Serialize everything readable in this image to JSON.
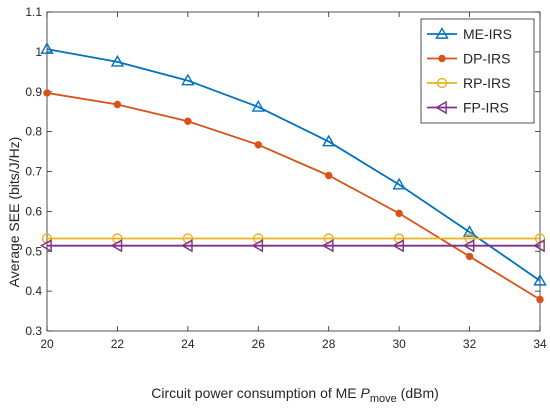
{
  "chart_data": {
    "type": "line",
    "title": "",
    "xlabel": {
      "prefix": "Circuit power consumption of ME ",
      "symbol": "P",
      "subscript": "move",
      "suffix": " (dBm)"
    },
    "ylabel": "Average SEE (bits/J/Hz)",
    "xlim": [
      20,
      34
    ],
    "ylim": [
      0.3,
      1.1
    ],
    "x_ticks": [
      "20",
      "22",
      "24",
      "26",
      "28",
      "30",
      "32",
      "34"
    ],
    "y_ticks": [
      "0.3",
      "0.4",
      "0.5",
      "0.6",
      "0.7",
      "0.8",
      "0.9",
      "1",
      "1.1"
    ],
    "grid": false,
    "legend_position": "top-right",
    "x": [
      20,
      22,
      24,
      26,
      28,
      30,
      32,
      34
    ],
    "series": [
      {
        "name": "ME-IRS",
        "color": "#0072BD",
        "marker": "triangle",
        "values": [
          1.007,
          0.975,
          0.928,
          0.862,
          0.775,
          0.667,
          0.548,
          0.426
        ]
      },
      {
        "name": "DP-IRS",
        "color": "#D95319",
        "marker": "dot",
        "values": [
          0.897,
          0.868,
          0.826,
          0.767,
          0.69,
          0.595,
          0.487,
          0.379
        ]
      },
      {
        "name": "RP-IRS",
        "color": "#EDB120",
        "marker": "circle",
        "values": [
          0.532,
          0.532,
          0.532,
          0.532,
          0.532,
          0.532,
          0.532,
          0.532
        ]
      },
      {
        "name": "FP-IRS",
        "color": "#7E2F8E",
        "marker": "left-triangle",
        "values": [
          0.514,
          0.514,
          0.514,
          0.514,
          0.514,
          0.514,
          0.514,
          0.514
        ]
      }
    ]
  }
}
